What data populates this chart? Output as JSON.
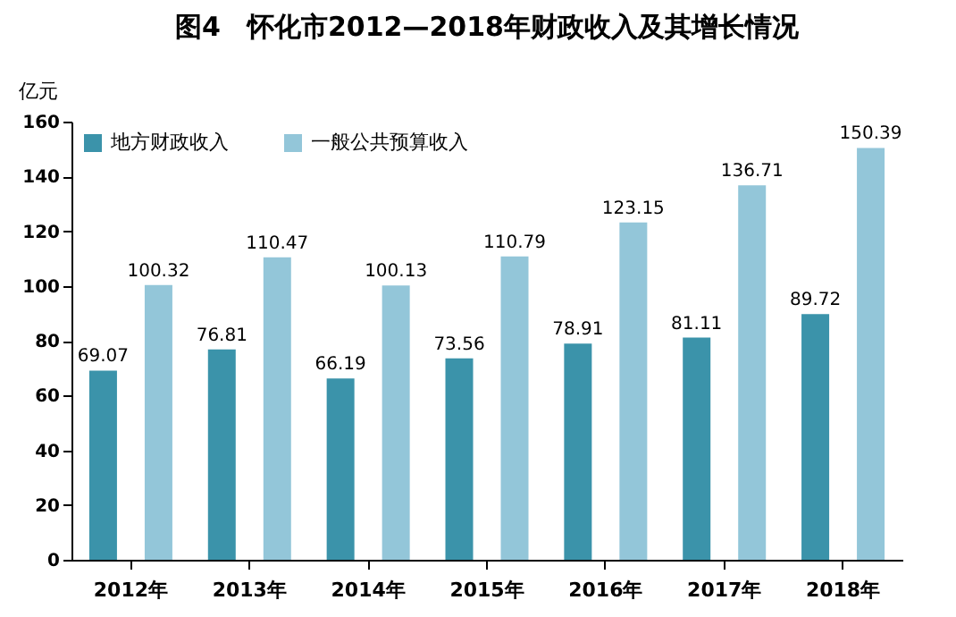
{
  "chart_data": {
    "type": "bar",
    "title": "图4　怀化市2012—2018年财政收入及其增长情况",
    "ylabel": "亿元",
    "categories": [
      "2012年",
      "2013年",
      "2014年",
      "2015年",
      "2016年",
      "2017年",
      "2018年"
    ],
    "series": [
      {
        "name": "地方财政收入",
        "color": "#3b93aa",
        "values": [
          69.07,
          76.81,
          66.19,
          73.56,
          78.91,
          81.11,
          89.72
        ]
      },
      {
        "name": "一般公共预算收入",
        "color": "#93c6d9",
        "values": [
          100.32,
          110.47,
          100.13,
          110.79,
          123.15,
          136.71,
          150.39
        ]
      }
    ],
    "ylim": [
      0,
      160
    ],
    "yticks": [
      0,
      20,
      40,
      60,
      80,
      100,
      120,
      140,
      160
    ],
    "grid": false,
    "legend": "top left",
    "data_labels": true
  }
}
